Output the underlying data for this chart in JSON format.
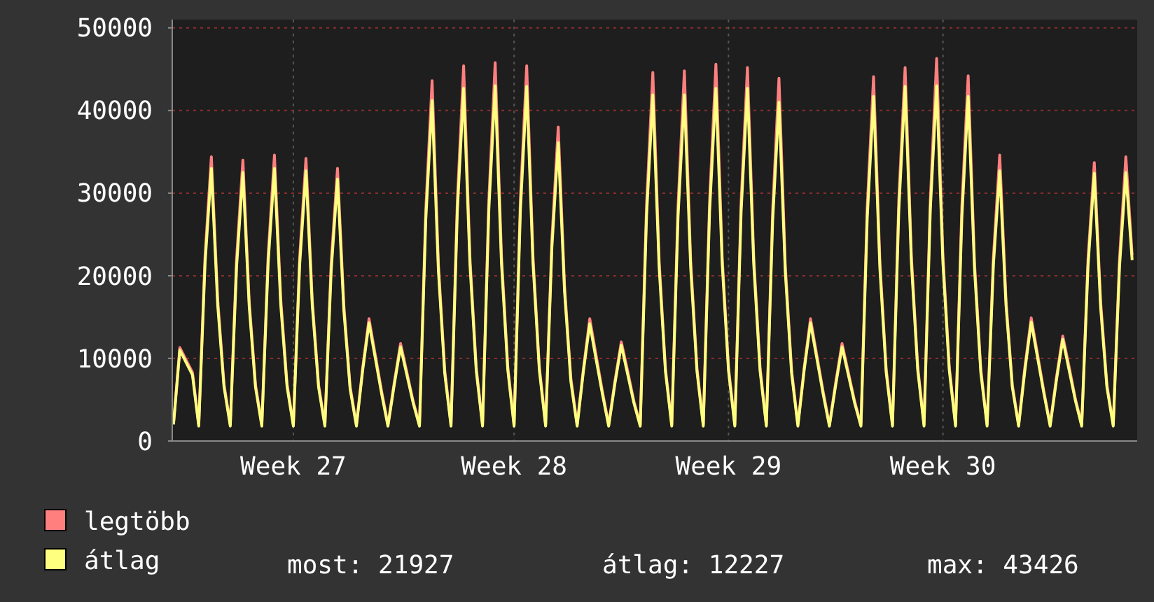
{
  "chart_data": {
    "type": "line",
    "ylim": [
      0,
      51000
    ],
    "yticks": [
      0,
      10000,
      20000,
      30000,
      40000,
      50000
    ],
    "grid": true,
    "legend": "bottom left",
    "annotations": [
      "most: 21927",
      "átlag: 12227",
      "max: 43426"
    ],
    "categories": [
      null,
      null,
      null,
      null,
      null,
      null,
      null,
      null,
      null,
      null,
      null,
      null,
      null,
      null,
      null,
      null,
      null,
      null,
      null,
      "Week 27",
      null,
      null,
      null,
      null,
      null,
      null,
      null,
      null,
      null,
      null,
      null,
      null,
      null,
      null,
      null,
      null,
      null,
      null,
      null,
      null,
      null,
      null,
      null,
      null,
      null,
      null,
      null,
      null,
      null,
      null,
      null,
      null,
      null,
      null,
      "Week 28",
      null,
      null,
      null,
      null,
      null,
      null,
      null,
      null,
      null,
      null,
      null,
      null,
      null,
      null,
      null,
      null,
      null,
      null,
      null,
      null,
      null,
      null,
      null,
      null,
      null,
      null,
      null,
      null,
      null,
      null,
      null,
      null,
      null,
      "Week 29",
      null,
      null,
      null,
      null,
      null,
      null,
      null,
      null,
      null,
      null,
      null,
      null,
      null,
      null,
      null,
      null,
      null,
      null,
      null,
      null,
      null,
      null,
      null,
      null,
      null,
      null,
      null,
      null,
      null,
      null,
      null,
      null,
      null,
      "Week 30",
      null,
      null,
      null,
      null,
      null,
      null,
      null,
      null,
      null,
      null,
      null,
      null,
      null,
      null,
      null,
      null,
      null,
      null,
      null,
      null,
      null,
      null,
      null,
      null,
      null,
      null,
      null,
      null,
      null,
      null
    ],
    "series": [
      {
        "name": "legtöbb",
        "color": "#ff7f7f",
        "values": [
          2100,
          11300,
          9800,
          8300,
          2000,
          22400,
          34400,
          17200,
          6900,
          2000,
          22100,
          34000,
          16900,
          6800,
          2000,
          22400,
          34600,
          17200,
          6900,
          2000,
          22200,
          34200,
          17000,
          6800,
          2000,
          21600,
          33000,
          16500,
          6600,
          2000,
          8900,
          14800,
          10400,
          6000,
          2000,
          7100,
          11800,
          8300,
          4800,
          2000,
          28000,
          43600,
          21400,
          8600,
          2000,
          29000,
          45400,
          22200,
          8900,
          2000,
          29200,
          45800,
          22400,
          9000,
          2000,
          29200,
          45400,
          22300,
          9000,
          2000,
          24500,
          38000,
          18800,
          7600,
          2000,
          8800,
          14800,
          10400,
          6000,
          2000,
          7300,
          12000,
          8500,
          4800,
          2000,
          28500,
          44600,
          21800,
          8800,
          2000,
          28500,
          44800,
          21800,
          8800,
          2000,
          29000,
          45600,
          22200,
          8900,
          2000,
          29000,
          45200,
          22200,
          8900,
          2000,
          27900,
          43900,
          21300,
          8600,
          2000,
          8900,
          14800,
          10400,
          6000,
          2000,
          7100,
          11800,
          8300,
          4800,
          2000,
          28400,
          44100,
          21700,
          8700,
          2000,
          29200,
          45200,
          22300,
          9000,
          2000,
          29200,
          46300,
          22400,
          9000,
          2000,
          28400,
          44200,
          21700,
          8700,
          2000,
          22200,
          34600,
          17000,
          6800,
          2000,
          9000,
          14900,
          10500,
          6000,
          2000,
          7700,
          12700,
          9000,
          5100,
          2000,
          22000,
          33700,
          16900,
          6800,
          2000,
          22100,
          34400,
          22500
        ]
      },
      {
        "name": "átlag",
        "color": "#ffff7f",
        "values": [
          2000,
          11000,
          9500,
          8000,
          1800,
          21500,
          33000,
          16500,
          6600,
          1800,
          21100,
          32500,
          16300,
          6500,
          1800,
          21500,
          33000,
          16500,
          6600,
          1800,
          21300,
          32700,
          16400,
          6500,
          1800,
          20600,
          31700,
          15900,
          6300,
          1800,
          8600,
          14300,
          10000,
          5700,
          1800,
          6800,
          11400,
          8000,
          4600,
          1800,
          26800,
          41200,
          20600,
          8200,
          1800,
          27800,
          42700,
          21400,
          8500,
          1800,
          28000,
          43000,
          21500,
          8600,
          1800,
          27900,
          42900,
          21500,
          8600,
          1800,
          23500,
          36100,
          18100,
          7200,
          1800,
          8500,
          14200,
          9900,
          5700,
          1800,
          7000,
          11600,
          8100,
          4600,
          1800,
          27200,
          41900,
          21000,
          8400,
          1800,
          27200,
          41900,
          21000,
          8400,
          1800,
          27800,
          42700,
          21400,
          8500,
          1800,
          27800,
          42700,
          21400,
          8500,
          1800,
          26700,
          41000,
          20500,
          8200,
          1800,
          8600,
          14300,
          10000,
          5700,
          1800,
          6800,
          11400,
          8000,
          4600,
          1800,
          27100,
          41700,
          20900,
          8300,
          1800,
          27900,
          42900,
          21500,
          8600,
          1800,
          28000,
          43000,
          21500,
          8600,
          1800,
          27100,
          41700,
          20900,
          8300,
          1800,
          21300,
          32700,
          16400,
          6500,
          1800,
          8600,
          14400,
          10100,
          5800,
          1800,
          7400,
          12300,
          8600,
          4900,
          1800,
          21100,
          32400,
          16200,
          6500,
          1800,
          21100,
          32500,
          21900
        ]
      }
    ]
  }
}
